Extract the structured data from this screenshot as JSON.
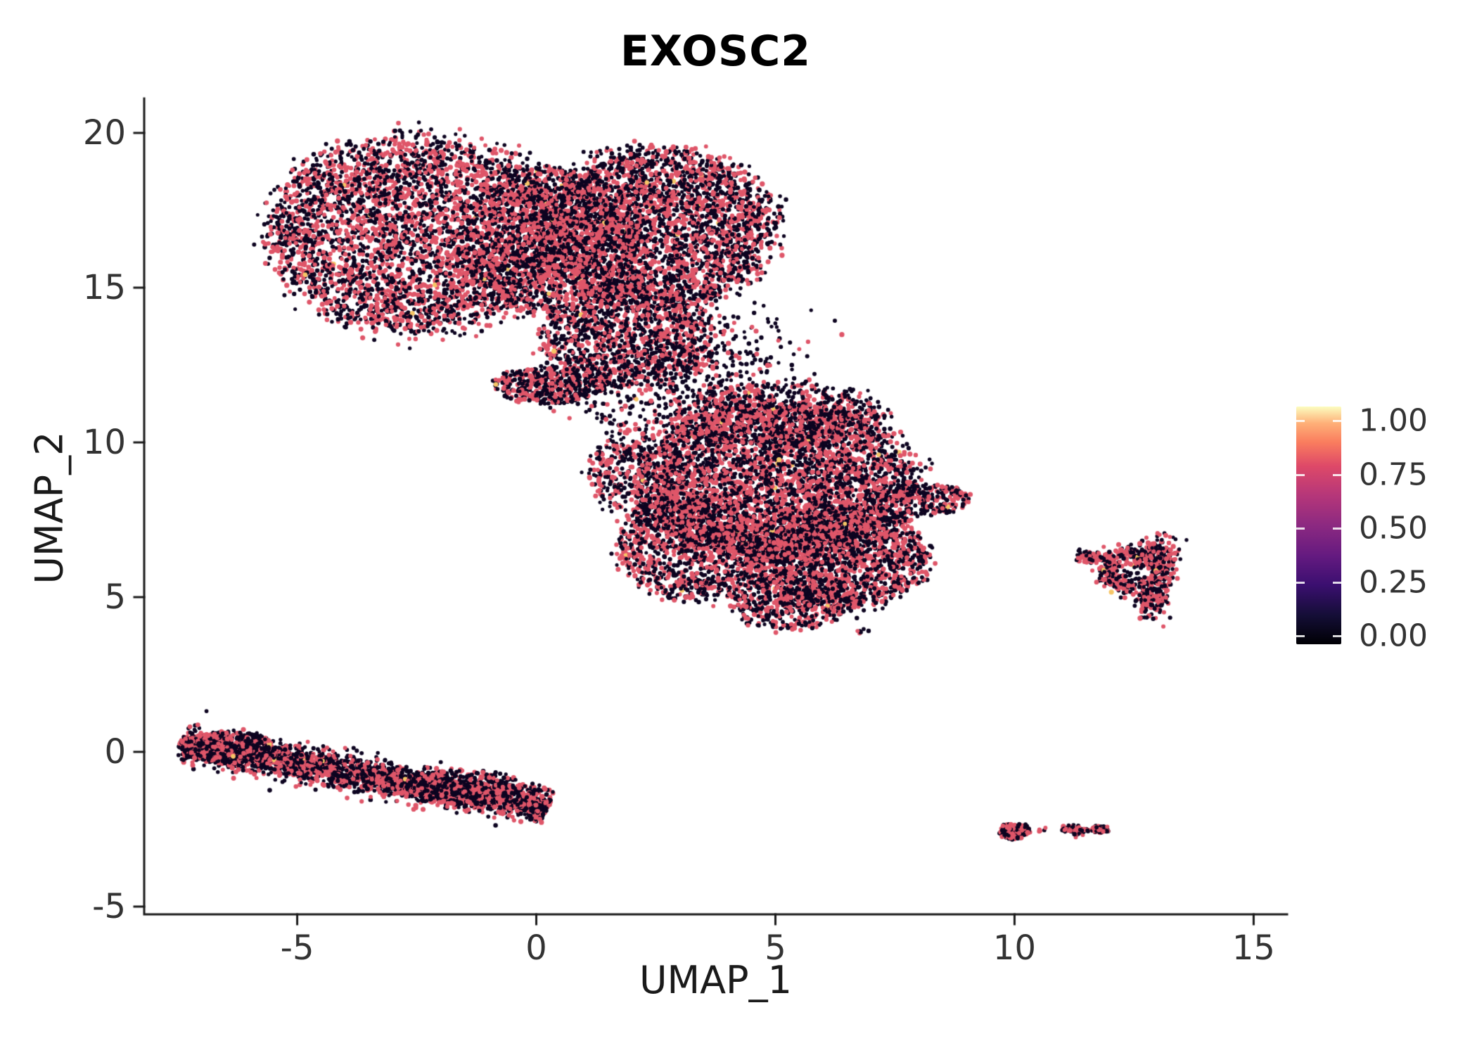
{
  "title": "EXOSC2",
  "axes": {
    "x": {
      "label": "UMAP_1",
      "ticks": [
        "-5",
        "0",
        "5",
        "10",
        "15"
      ],
      "values": [
        -5,
        0,
        5,
        10,
        15
      ]
    },
    "y": {
      "label": "UMAP_2",
      "ticks": [
        "-5",
        "0",
        "5",
        "10",
        "15",
        "20"
      ],
      "values": [
        -5,
        0,
        5,
        10,
        15,
        20
      ]
    }
  },
  "legend": {
    "ticks": [
      "1.00",
      "0.75",
      "0.50",
      "0.25",
      "0.00"
    ],
    "values": [
      1.0,
      0.75,
      0.5,
      0.25,
      0.0
    ]
  },
  "chart_data": {
    "type": "scatter",
    "title": "EXOSC2",
    "xlabel": "UMAP_1",
    "ylabel": "UMAP_2",
    "xlim": [
      -8.2,
      15.7
    ],
    "ylim": [
      -5.25,
      21.0
    ],
    "x_ticks": [
      -5,
      0,
      5,
      10,
      15
    ],
    "y_ticks": [
      -5,
      0,
      5,
      10,
      15,
      20
    ],
    "grid": false,
    "legend_position": "right",
    "colorbar": {
      "min": 0,
      "max": 1,
      "ticks": [
        0.0,
        0.25,
        0.5,
        0.75,
        1.0
      ],
      "palette": "magma",
      "stops": [
        [
          0,
          "#000004"
        ],
        [
          0.12,
          "#140e36"
        ],
        [
          0.25,
          "#3b0f70"
        ],
        [
          0.37,
          "#641a80"
        ],
        [
          0.5,
          "#8c2981"
        ],
        [
          0.63,
          "#b73779"
        ],
        [
          0.75,
          "#de4968"
        ],
        [
          0.85,
          "#fa7d5e"
        ],
        [
          0.93,
          "#feb078"
        ],
        [
          1,
          "#fcfdbf"
        ]
      ]
    },
    "point_colors": {
      "low": "#0d0420",
      "mid": "#df5669",
      "high": "#f6c667"
    },
    "point_mix": {
      "mid_frac": 0.44,
      "high_frac": 0.004
    },
    "clusters": [
      {
        "region": "upper-main-left-lobe",
        "shape": "disk",
        "cx": -2.5,
        "cy": 16.75,
        "rx": 3.1,
        "ry": 3.2,
        "n": 3800
      },
      {
        "region": "upper-main-right-lobe",
        "shape": "disk",
        "cx": 2.5,
        "cy": 16.9,
        "rx": 2.5,
        "ry": 2.6,
        "n": 3200
      },
      {
        "region": "upper-main-center-fill",
        "shape": "disk",
        "cx": 0.2,
        "cy": 16.5,
        "rx": 1.9,
        "ry": 2.4,
        "n": 1500
      },
      {
        "region": "upper-main-lower-extension",
        "shape": "disk",
        "cx": 1.9,
        "cy": 13.4,
        "rx": 1.8,
        "ry": 1.6,
        "n": 1200
      },
      {
        "region": "upper-main-neck",
        "shape": "disk",
        "cx": 0.3,
        "cy": 11.85,
        "rx": 1.15,
        "ry": 0.6,
        "n": 450
      },
      {
        "region": "bridge-sparse-right",
        "shape": "gauss",
        "cx": 3.5,
        "cy": 12.7,
        "sx": 1.1,
        "sy": 0.85,
        "n": 320,
        "pink": 0.25
      },
      {
        "region": "bridge-sparse-left",
        "shape": "gauss",
        "cx": 2.0,
        "cy": 11.4,
        "sx": 0.8,
        "sy": 0.6,
        "n": 140,
        "pink": 0.25
      },
      {
        "region": "middle-main-core",
        "shape": "disk",
        "cx": 5.0,
        "cy": 8.7,
        "rx": 2.9,
        "ry": 2.6,
        "n": 4200
      },
      {
        "region": "middle-lower-right",
        "shape": "disk",
        "cx": 6.3,
        "cy": 6.3,
        "rx": 1.9,
        "ry": 1.7,
        "n": 1700
      },
      {
        "region": "middle-lower-left",
        "shape": "disk",
        "cx": 3.2,
        "cy": 6.6,
        "rx": 1.5,
        "ry": 1.7,
        "n": 1100
      },
      {
        "region": "middle-bottom-tip",
        "shape": "disk",
        "cx": 5.3,
        "cy": 4.9,
        "rx": 1.3,
        "ry": 0.95,
        "n": 500
      },
      {
        "region": "middle-top-cap",
        "shape": "disk",
        "cx": 5.0,
        "cy": 10.9,
        "rx": 2.3,
        "ry": 1.05,
        "n": 750
      },
      {
        "region": "middle-right-tail",
        "shape": "disk",
        "cx": 8.15,
        "cy": 8.15,
        "rx": 0.95,
        "ry": 0.5,
        "n": 260
      },
      {
        "region": "middle-left-edge",
        "shape": "disk",
        "cx": 2.1,
        "cy": 9.0,
        "rx": 1.0,
        "ry": 1.4,
        "n": 380
      },
      {
        "region": "middle-outlier",
        "shape": "gauss",
        "cx": 6.85,
        "cy": 3.85,
        "sx": 0.12,
        "sy": 0.08,
        "n": 6,
        "pink": 0.3
      },
      {
        "region": "right-island-ring",
        "shape": "ring",
        "cx": 12.5,
        "cy": 5.85,
        "r": 0.55,
        "sr": 0.16,
        "n": 420
      },
      {
        "region": "right-island-left-arm",
        "shape": "streak",
        "x1": 11.3,
        "y1": 6.35,
        "x2": 12.05,
        "y2": 6.2,
        "w": 0.1,
        "n": 90
      },
      {
        "region": "right-island-bottom",
        "shape": "gauss",
        "cx": 12.9,
        "cy": 4.95,
        "sx": 0.18,
        "sy": 0.33,
        "n": 130
      },
      {
        "region": "right-island-top",
        "shape": "gauss",
        "cx": 13.0,
        "cy": 6.5,
        "sx": 0.22,
        "sy": 0.28,
        "n": 110
      },
      {
        "region": "lower-left-streak",
        "shape": "streak",
        "x1": -7.45,
        "y1": 0.3,
        "x2": 0.25,
        "y2": -1.8,
        "w": 0.27,
        "n": 2700,
        "pink": 0.36
      },
      {
        "region": "lower-left-streak-head",
        "shape": "disk",
        "cx": -6.4,
        "cy": 0.15,
        "rx": 1.0,
        "ry": 0.5,
        "n": 450,
        "pink": 0.36
      },
      {
        "region": "lower-left-streak-belly",
        "shape": "disk",
        "cx": -1.6,
        "cy": -1.15,
        "rx": 1.3,
        "ry": 0.55,
        "n": 350,
        "pink": 0.36
      },
      {
        "region": "bottom-right-islet-a",
        "shape": "disk",
        "cx": 10.0,
        "cy": -2.55,
        "rx": 0.34,
        "ry": 0.27,
        "n": 170,
        "pink": 0.5
      },
      {
        "region": "bottom-right-islet-b",
        "shape": "streak",
        "x1": 11.0,
        "y1": -2.48,
        "x2": 11.55,
        "y2": -2.55,
        "w": 0.07,
        "n": 70,
        "pink": 0.5
      },
      {
        "region": "bottom-right-islet-c",
        "shape": "disk",
        "cx": 11.8,
        "cy": -2.5,
        "rx": 0.2,
        "ry": 0.12,
        "n": 55,
        "pink": 0.5
      },
      {
        "region": "bottom-right-islet-dot",
        "shape": "gauss",
        "cx": 10.55,
        "cy": -2.5,
        "sx": 0.05,
        "sy": 0.04,
        "n": 6,
        "pink": 0.5
      }
    ]
  }
}
